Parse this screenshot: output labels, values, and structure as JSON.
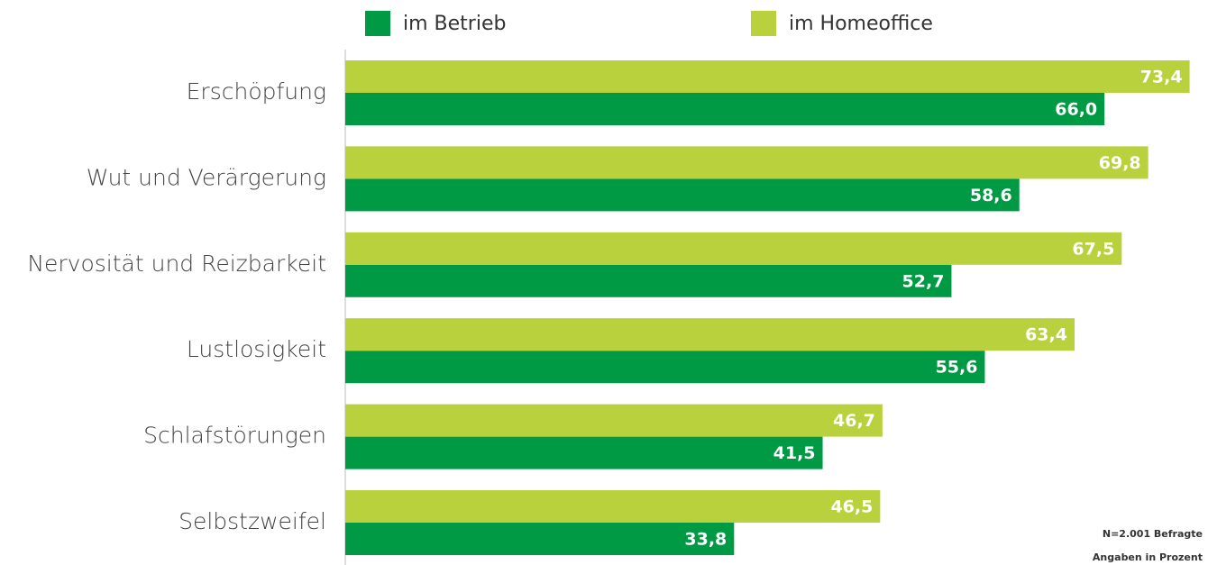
{
  "chart_data": {
    "type": "bar",
    "orientation": "horizontal",
    "categories": [
      "Erschöpfung",
      "Wut und Verärgerung",
      "Nervosität und Reizbarkeit",
      "Lustlosigkeit",
      "Schlafstörungen",
      "Selbstzweifel"
    ],
    "series": [
      {
        "name": "im Betrieb",
        "color": "#009a44",
        "values": [
          66.0,
          58.6,
          52.7,
          55.6,
          41.5,
          33.8
        ],
        "value_labels": [
          "66,0",
          "58,6",
          "52,7",
          "55,6",
          "41,5",
          "33,8"
        ]
      },
      {
        "name": "im Homeoffice",
        "color": "#b9d13c",
        "values": [
          73.4,
          69.8,
          67.5,
          63.4,
          46.7,
          46.5
        ],
        "value_labels": [
          "73,4",
          "69,8",
          "67,5",
          "63,4",
          "46,7",
          "46,5"
        ]
      }
    ],
    "xlim": [
      0,
      75
    ],
    "notes": [
      "N=2.001 Befragte",
      "Angaben in Prozent"
    ]
  }
}
